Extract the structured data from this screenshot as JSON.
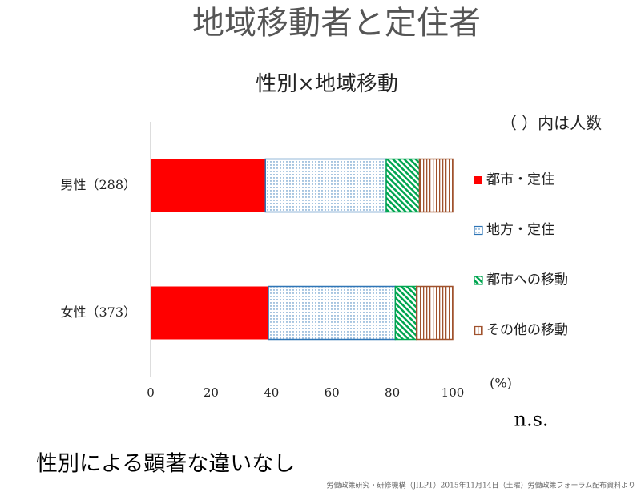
{
  "slide": {
    "title": "地域移動者と定住者",
    "conclusion": "性別による顕著な違いなし",
    "source": "労働政策研究・研修機構（JILPT）2015年11月14日（土曜）労働政策フォーラム配布資料より"
  },
  "chart_data": {
    "type": "bar",
    "orientation": "horizontal",
    "stacked": true,
    "title": "性別×地域移動",
    "note": "（ ）内は人数",
    "unit_label": "(%)",
    "annotation": "n.s.",
    "categories": [
      "男性（288）",
      "女性（373）"
    ],
    "series": [
      {
        "name": "都市・定住",
        "color": "#ff0000",
        "pattern": "solid",
        "values": [
          38,
          39
        ]
      },
      {
        "name": "地方・定住",
        "color": "#2e75b6",
        "pattern": "dots",
        "values": [
          40,
          42
        ]
      },
      {
        "name": "都市への移動",
        "color": "#00a550",
        "pattern": "diagonal",
        "values": [
          11,
          7
        ]
      },
      {
        "name": "その他の移動",
        "color": "#a0522d",
        "pattern": "vertical",
        "values": [
          11,
          12
        ]
      }
    ],
    "xlim": [
      0,
      100
    ],
    "xticks": [
      0,
      20,
      40,
      60,
      80,
      100
    ],
    "grid": false
  }
}
